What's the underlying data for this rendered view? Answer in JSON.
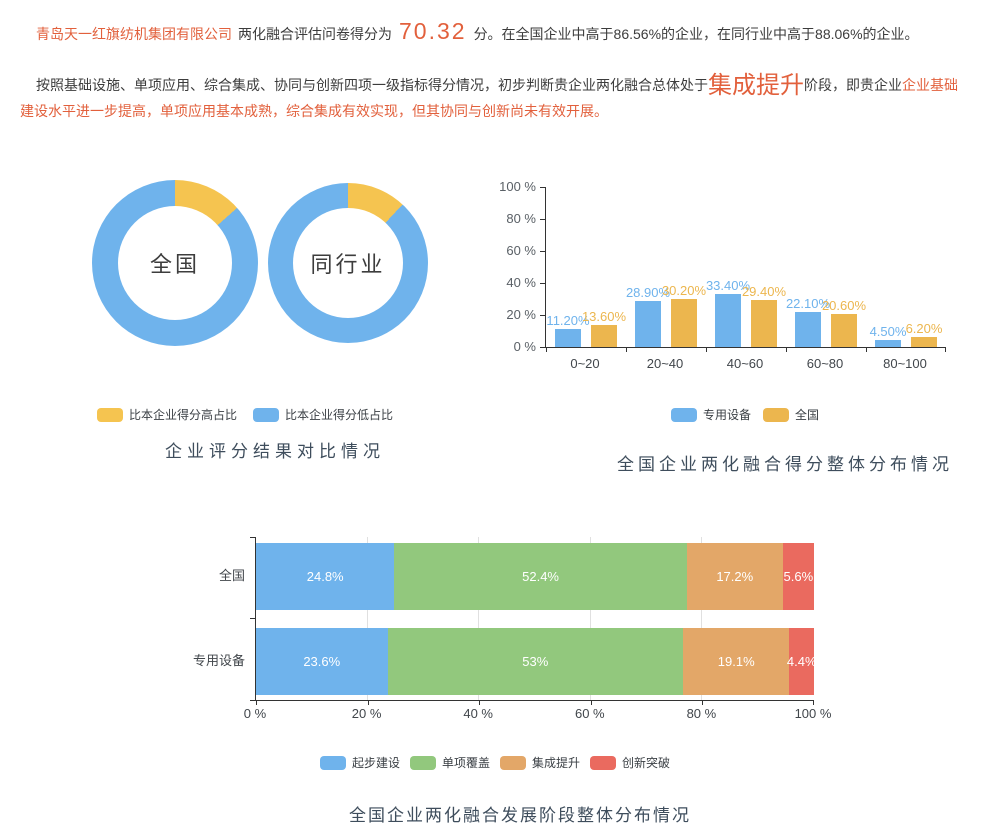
{
  "colors": {
    "accent_red": "#e2603c",
    "dark_text": "#3c3c3c",
    "title_color": "#3e4d5c",
    "blue": "#6fb3ec",
    "yellow": "#ecb64e",
    "donut_yellow": "#f5c450",
    "green": "#92c87d",
    "orange": "#e3a768",
    "red": "#ea6a5f"
  },
  "report": {
    "company": "青岛天一红旗纺机集团有限公司",
    "score_prefix": "两化融合评估问卷得分为",
    "score": "70.32",
    "score_suffix": "分。在全国企业中高于86.56%的企业，在同行业中高于88.06%的企业。",
    "para2_part1": "按照基础设施、单项应用、综合集成、协同与创新四项一级指标得分情况，初步判断贵企业两化融合总体处于",
    "para2_stage": "集成提升",
    "para2_part2": "阶段，即贵企业",
    "para2_part3": "企业基础建设水平进一步提高，单项应用基本成熟，综合集成有效实现，但其协同与创新尚未有效开展。"
  },
  "chart_data": [
    {
      "type": "pie",
      "title": "企业评分结果对比情况",
      "legend": [
        "比本企业得分高占比",
        "比本企业得分低占比"
      ],
      "legend_position": "bottom",
      "donuts": [
        {
          "label": "全国",
          "slices": [
            {
              "name": "比本企业得分高占比",
              "value": 13.44
            },
            {
              "name": "比本企业得分低占比",
              "value": 86.56
            }
          ]
        },
        {
          "label": "同行业",
          "slices": [
            {
              "name": "比本企业得分高占比",
              "value": 11.94
            },
            {
              "name": "比本企业得分低占比",
              "value": 88.06
            }
          ]
        }
      ]
    },
    {
      "type": "bar",
      "title": "全国企业两化融合得分整体分布情况",
      "categories": [
        "0~20",
        "20~40",
        "40~60",
        "60~80",
        "80~100"
      ],
      "series": [
        {
          "name": "专用设备",
          "values": [
            11.2,
            28.9,
            33.4,
            22.1,
            4.5
          ]
        },
        {
          "name": "全国",
          "values": [
            13.6,
            30.2,
            29.4,
            20.6,
            6.2
          ]
        }
      ],
      "ylabel_ticks": [
        "100 %",
        "80 %",
        "60 %",
        "40 %",
        "20 %",
        "0 %"
      ],
      "ylim": [
        0,
        100
      ],
      "grid": false,
      "legend_position": "bottom"
    },
    {
      "type": "bar-stacked",
      "title": "全国企业两化融合发展阶段整体分布情况",
      "rows": [
        "全国",
        "专用设备"
      ],
      "segments": [
        "起步建设",
        "单项覆盖",
        "集成提升",
        "创新突破"
      ],
      "values": [
        [
          24.8,
          52.4,
          17.2,
          5.6
        ],
        [
          23.6,
          53,
          19.1,
          4.4
        ]
      ],
      "labels": [
        [
          "24.8%",
          "52.4%",
          "17.2%",
          "5.6%"
        ],
        [
          "23.6%",
          "53%",
          "19.1%",
          "4.4%"
        ]
      ],
      "x_ticks": [
        "0 %",
        "20 %",
        "40 %",
        "60 %",
        "80 %",
        "100 %"
      ],
      "xlim": [
        0,
        100
      ],
      "grid": true,
      "legend_position": "bottom"
    }
  ]
}
